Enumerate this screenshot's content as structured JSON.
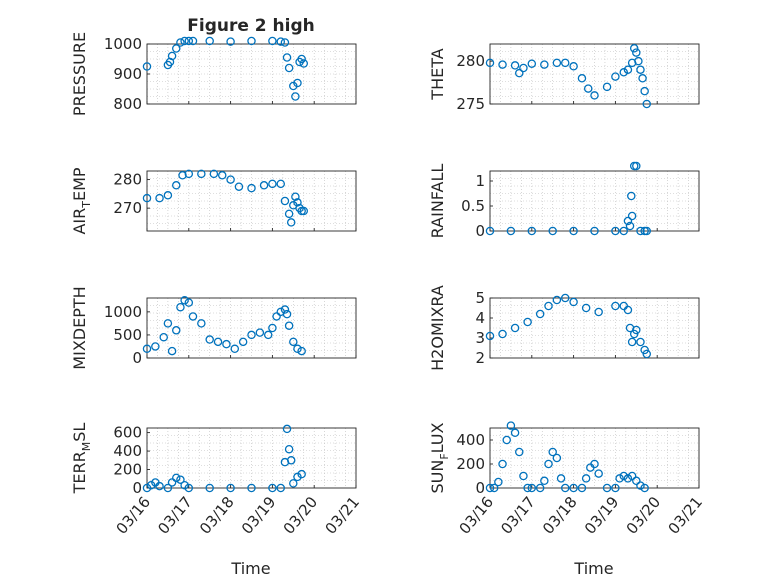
{
  "figure": {
    "title": "Figure 2 high",
    "xlabel": "Time"
  },
  "colors": {
    "marker": "#0072BD",
    "axis": "#262626",
    "grid": "#bdbdbd"
  },
  "xticks": [
    "03/16",
    "03/17",
    "03/18",
    "03/19",
    "03/20",
    "03/21"
  ],
  "chart_data": [
    {
      "type": "scatter",
      "ylabel": "PRESSURE",
      "ylim": [
        800,
        1000
      ],
      "yticks": [
        "800",
        "900",
        "1000"
      ],
      "grid": true,
      "x": [
        16.0,
        16.5,
        16.55,
        16.6,
        16.7,
        16.8,
        16.9,
        17.0,
        17.1,
        17.5,
        18.0,
        18.5,
        19.0,
        19.2,
        19.3,
        19.35,
        19.4,
        19.5,
        19.55,
        19.6,
        19.65,
        19.7,
        19.75
      ],
      "y": [
        925,
        930,
        940,
        960,
        985,
        1005,
        1010,
        1010,
        1010,
        1010,
        1008,
        1010,
        1010,
        1008,
        1005,
        955,
        920,
        860,
        825,
        870,
        940,
        950,
        935
      ]
    },
    {
      "type": "scatter",
      "ylabel": "THETA",
      "ylim": [
        275,
        282
      ],
      "yticks": [
        "275",
        "280"
      ],
      "grid": true,
      "x": [
        16.0,
        16.3,
        16.6,
        16.7,
        16.8,
        17.0,
        17.3,
        17.6,
        17.8,
        18.0,
        18.2,
        18.35,
        18.5,
        18.8,
        19.0,
        19.2,
        19.3,
        19.4,
        19.45,
        19.5,
        19.55,
        19.6,
        19.65,
        19.7,
        19.75
      ],
      "y": [
        279.8,
        279.6,
        279.5,
        278.6,
        279.2,
        279.7,
        279.6,
        279.8,
        279.8,
        279.4,
        278,
        276.8,
        276,
        277,
        278.2,
        278.7,
        279,
        279.8,
        281.5,
        281,
        280,
        279,
        278,
        276.5,
        275
      ]
    },
    {
      "type": "scatter",
      "ylabel": "AIR_TEMP",
      "ylim": [
        262,
        283
      ],
      "yticks": [
        "270",
        "280"
      ],
      "grid": true,
      "x": [
        16.0,
        16.3,
        16.5,
        16.7,
        16.85,
        17.0,
        17.3,
        17.6,
        17.8,
        18.0,
        18.2,
        18.5,
        18.8,
        19.0,
        19.2,
        19.3,
        19.4,
        19.45,
        19.5,
        19.55,
        19.6,
        19.65,
        19.7,
        19.75
      ],
      "y": [
        273.5,
        273.5,
        274.5,
        278,
        281.5,
        282,
        282,
        282,
        281.5,
        280,
        277.5,
        277,
        278,
        278.5,
        278.5,
        272.5,
        268,
        265,
        271,
        274,
        272,
        270,
        269,
        269
      ]
    },
    {
      "type": "scatter",
      "ylabel": "RAINFALL",
      "ylim": [
        0,
        1.2
      ],
      "yticks": [
        "0",
        "0.5",
        "1"
      ],
      "grid": true,
      "x": [
        16.0,
        16.5,
        17.0,
        17.5,
        18.0,
        18.5,
        19.0,
        19.2,
        19.3,
        19.35,
        19.38,
        19.4,
        19.45,
        19.5,
        19.6,
        19.7,
        19.75
      ],
      "y": [
        0,
        0,
        0,
        0,
        0,
        0,
        0,
        0,
        0.2,
        0.1,
        0.7,
        0.3,
        1.3,
        1.3,
        0,
        0,
        0
      ]
    },
    {
      "type": "scatter",
      "ylabel": "MIXDEPTH",
      "ylim": [
        0,
        1300
      ],
      "yticks": [
        "0",
        "500",
        "1000"
      ],
      "grid": true,
      "x": [
        16.0,
        16.2,
        16.4,
        16.5,
        16.6,
        16.7,
        16.8,
        16.9,
        17.0,
        17.1,
        17.3,
        17.5,
        17.7,
        17.9,
        18.1,
        18.3,
        18.5,
        18.7,
        18.9,
        19.0,
        19.1,
        19.2,
        19.3,
        19.35,
        19.4,
        19.5,
        19.6,
        19.7
      ],
      "y": [
        200,
        250,
        450,
        750,
        150,
        600,
        1100,
        1250,
        1200,
        900,
        750,
        400,
        350,
        300,
        200,
        350,
        500,
        550,
        500,
        650,
        900,
        1000,
        1050,
        950,
        700,
        350,
        200,
        150
      ]
    },
    {
      "type": "scatter",
      "ylabel": "H2OMIXRA",
      "ylim": [
        2,
        5
      ],
      "yticks": [
        "2",
        "3",
        "4",
        "5"
      ],
      "grid": true,
      "x": [
        16.0,
        16.3,
        16.6,
        16.9,
        17.2,
        17.4,
        17.6,
        17.8,
        18.0,
        18.3,
        18.6,
        19.0,
        19.2,
        19.3,
        19.35,
        19.4,
        19.45,
        19.5,
        19.6,
        19.7,
        19.75
      ],
      "y": [
        3.1,
        3.2,
        3.5,
        3.8,
        4.2,
        4.6,
        4.9,
        5.0,
        4.8,
        4.5,
        4.3,
        4.6,
        4.6,
        4.4,
        3.5,
        2.8,
        3.2,
        3.4,
        2.8,
        2.4,
        2.2
      ]
    },
    {
      "type": "scatter",
      "ylabel": "TERR_MSL",
      "ylim": [
        0,
        650
      ],
      "yticks": [
        "0",
        "200",
        "400",
        "600"
      ],
      "grid": true,
      "x": [
        16.0,
        16.1,
        16.2,
        16.3,
        16.5,
        16.6,
        16.7,
        16.8,
        16.9,
        17.0,
        17.5,
        18.0,
        18.5,
        19.0,
        19.2,
        19.3,
        19.35,
        19.4,
        19.45,
        19.5,
        19.6,
        19.7
      ],
      "y": [
        0,
        30,
        60,
        20,
        0,
        60,
        110,
        90,
        30,
        0,
        0,
        0,
        0,
        0,
        0,
        280,
        640,
        420,
        300,
        50,
        120,
        150
      ]
    },
    {
      "type": "scatter",
      "ylabel": "SUN_FLUX",
      "ylim": [
        0,
        500
      ],
      "yticks": [
        "0",
        "200",
        "400"
      ],
      "grid": true,
      "x": [
        16.0,
        16.1,
        16.2,
        16.3,
        16.4,
        16.5,
        16.6,
        16.7,
        16.8,
        16.9,
        17.0,
        17.2,
        17.3,
        17.4,
        17.5,
        17.6,
        17.7,
        17.8,
        18.0,
        18.2,
        18.3,
        18.4,
        18.5,
        18.6,
        18.8,
        19.0,
        19.1,
        19.2,
        19.3,
        19.4,
        19.5,
        19.6,
        19.7
      ],
      "y": [
        0,
        0,
        50,
        200,
        400,
        520,
        460,
        300,
        100,
        0,
        0,
        0,
        60,
        200,
        300,
        250,
        80,
        0,
        0,
        0,
        80,
        170,
        200,
        120,
        0,
        0,
        80,
        100,
        80,
        100,
        60,
        20,
        0
      ]
    }
  ]
}
